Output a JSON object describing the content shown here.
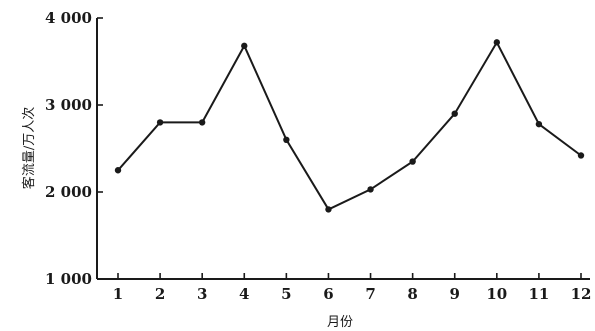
{
  "chart_data": {
    "type": "line",
    "title": "",
    "xlabel": "月份",
    "ylabel": "客流量/万人次",
    "categories": [
      "1",
      "2",
      "3",
      "4",
      "5",
      "6",
      "7",
      "8",
      "9",
      "10",
      "11",
      "12"
    ],
    "y_tick_labels": [
      "1 000",
      "2 000",
      "3 000",
      "4 000"
    ],
    "y_ticks": [
      1000,
      2000,
      3000,
      4000
    ],
    "ylim": [
      1000,
      4000
    ],
    "grid": false,
    "series": [
      {
        "values": [
          2250,
          2800,
          2800,
          3680,
          2600,
          1800,
          2030,
          2350,
          2900,
          3720,
          2780,
          2420
        ]
      }
    ]
  }
}
